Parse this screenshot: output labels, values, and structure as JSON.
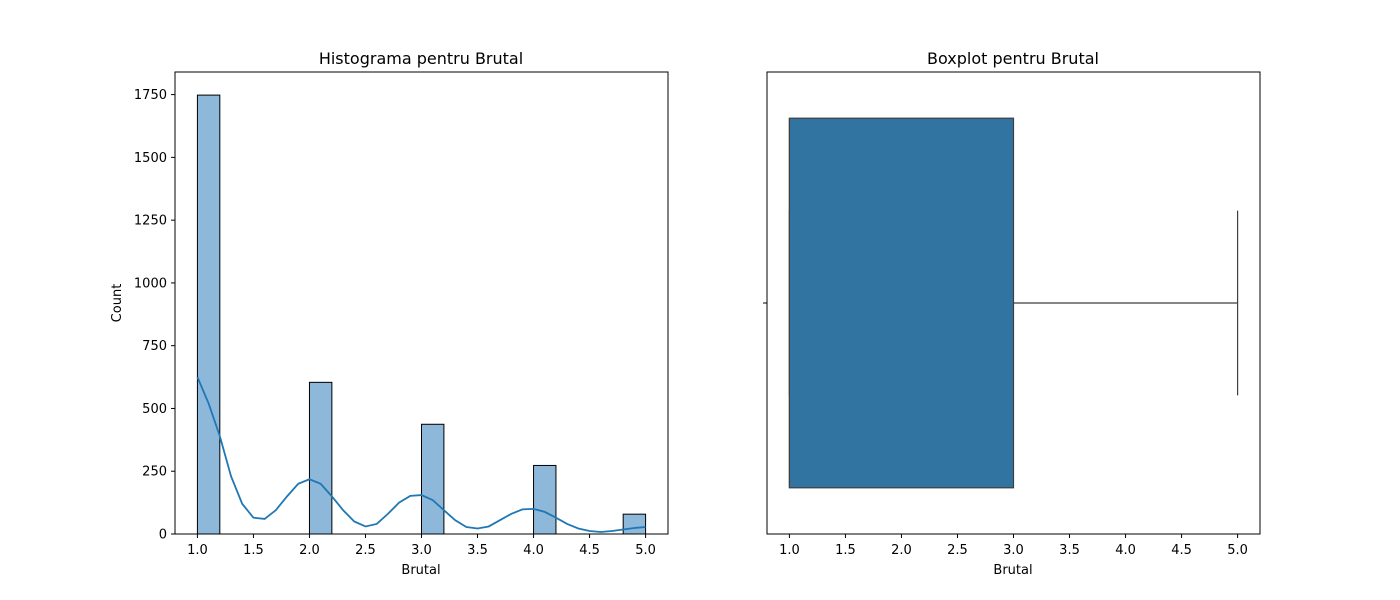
{
  "chart_data": [
    {
      "type": "bar",
      "subtype": "histogram-with-kde",
      "title": "Histograma pentru Brutal",
      "xlabel": "Brutal",
      "ylabel": "Count",
      "xlim": [
        0.8,
        5.2
      ],
      "ylim": [
        0,
        1840
      ],
      "xticks": [
        "1.0",
        "1.5",
        "2.0",
        "2.5",
        "3.0",
        "3.5",
        "4.0",
        "4.5",
        "5.0"
      ],
      "yticks": [
        "0",
        "250",
        "500",
        "750",
        "1000",
        "1250",
        "1500",
        "1750"
      ],
      "bin_width": 0.2,
      "bars": [
        {
          "x0": 1.0,
          "count": 1748
        },
        {
          "x0": 2.0,
          "count": 604
        },
        {
          "x0": 3.0,
          "count": 437
        },
        {
          "x0": 4.0,
          "count": 273
        },
        {
          "x0": 4.8,
          "count": 79
        }
      ],
      "kde": {
        "x": [
          1.0,
          1.1,
          1.2,
          1.3,
          1.4,
          1.5,
          1.6,
          1.7,
          1.8,
          1.9,
          2.0,
          2.1,
          2.2,
          2.3,
          2.4,
          2.5,
          2.6,
          2.7,
          2.8,
          2.9,
          3.0,
          3.1,
          3.2,
          3.3,
          3.4,
          3.5,
          3.6,
          3.7,
          3.8,
          3.9,
          4.0,
          4.1,
          4.2,
          4.3,
          4.4,
          4.5,
          4.6,
          4.7,
          4.8,
          4.9,
          5.0
        ],
        "y": [
          625,
          520,
          390,
          230,
          120,
          65,
          60,
          95,
          150,
          200,
          218,
          200,
          150,
          95,
          50,
          30,
          40,
          80,
          125,
          152,
          155,
          135,
          95,
          55,
          28,
          22,
          30,
          55,
          80,
          98,
          100,
          88,
          65,
          40,
          22,
          12,
          8,
          12,
          18,
          24,
          28
        ]
      },
      "colors": {
        "bar_fill": "#8db8d9",
        "bar_edge": "#000000",
        "kde_line": "#1f77b4"
      },
      "grid": false
    },
    {
      "type": "boxplot",
      "orientation": "horizontal",
      "title": "Boxplot pentru Brutal",
      "xlabel": "Brutal",
      "xlim": [
        0.8,
        5.2
      ],
      "xticks": [
        "1.0",
        "1.5",
        "2.0",
        "2.5",
        "3.0",
        "3.5",
        "4.0",
        "4.5",
        "5.0"
      ],
      "box": {
        "min": 1.0,
        "q1": 1.0,
        "median": 1.0,
        "q3": 3.0,
        "max": 5.0
      },
      "colors": {
        "box_fill": "#3274a1",
        "line": "#3f3f3f"
      },
      "grid": false
    }
  ]
}
